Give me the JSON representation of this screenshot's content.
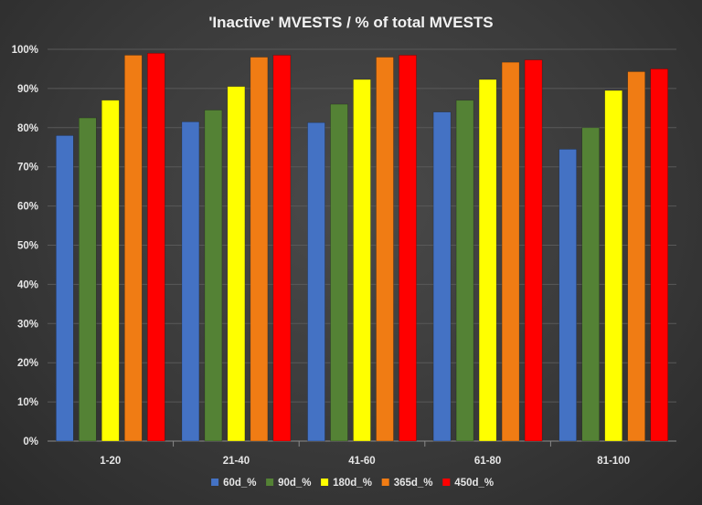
{
  "chart_data": {
    "type": "bar",
    "title": "'Inactive'  MVESTS  / % of total  MVESTS",
    "xlabel": "",
    "ylabel": "",
    "categories": [
      "1-20",
      "21-40",
      "41-60",
      "61-80",
      "81-100"
    ],
    "series": [
      {
        "name": "60d_%",
        "color": "#4472c4",
        "values": [
          78,
          81.5,
          81.3,
          84,
          74.5
        ]
      },
      {
        "name": "90d_%",
        "color": "#548235",
        "values": [
          82.5,
          84.5,
          86,
          87,
          80
        ]
      },
      {
        "name": "180d_%",
        "color": "#ffff00",
        "values": [
          87,
          90.5,
          92.3,
          92.3,
          89.5
        ]
      },
      {
        "name": "365d_%",
        "color": "#f07c14",
        "values": [
          98.5,
          98,
          98,
          96.7,
          94.3
        ]
      },
      {
        "name": "450d_%",
        "color": "#ff0000",
        "values": [
          99,
          98.5,
          98.5,
          97.3,
          95
        ]
      }
    ],
    "ylim": [
      0,
      100
    ],
    "yticks": [
      "0%",
      "10%",
      "20%",
      "30%",
      "40%",
      "50%",
      "60%",
      "70%",
      "80%",
      "90%",
      "100%"
    ],
    "grid": true,
    "legend_position": "bottom"
  },
  "colors": {
    "background": "#3a3a3a",
    "gridline": "#595959",
    "text": "#e6e6e6"
  }
}
